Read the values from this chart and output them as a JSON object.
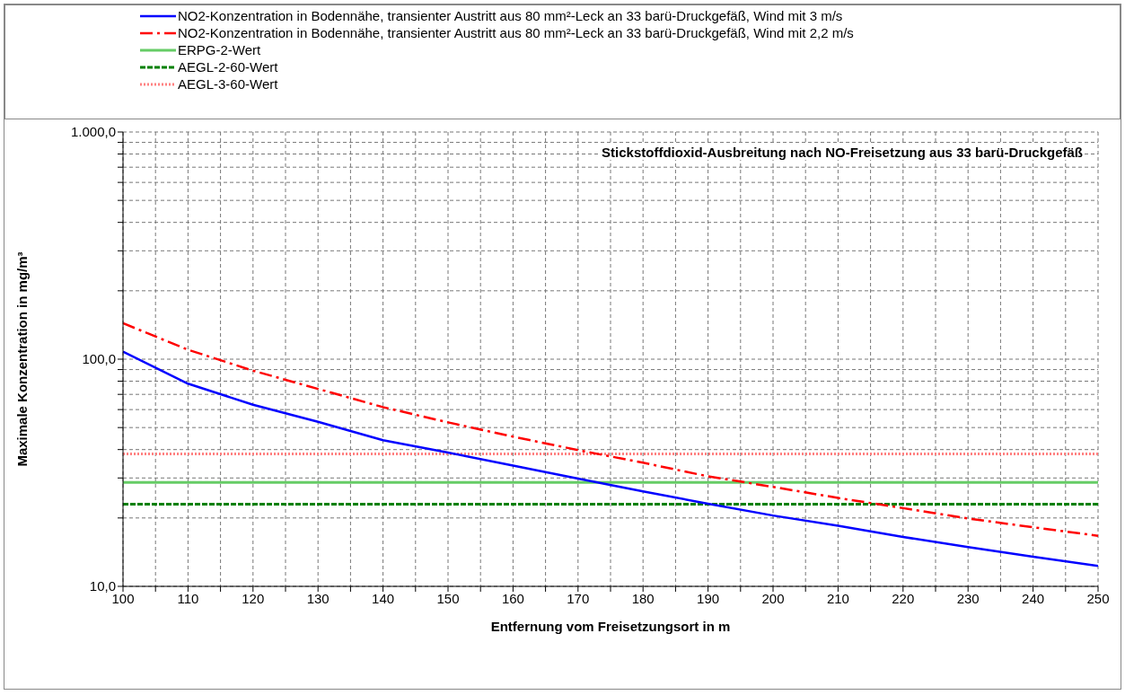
{
  "chart_data": {
    "type": "line",
    "title": "Stickstoffdioxid-Ausbreitung nach NO-Freisetzung aus 33 barü-Druckgefäß",
    "xlabel": "Entfernung vom Freisetzungsort in m",
    "ylabel": "Maximale Konzentration in mg/m³",
    "x": [
      100,
      110,
      120,
      130,
      140,
      150,
      160,
      170,
      180,
      190,
      200,
      210,
      220,
      230,
      240,
      250
    ],
    "series": [
      {
        "name": "NO2-Konzentration in Bodennähe, transienter Austritt aus 80 mm²-Leck an 33 barü-Druckgefäß, Wind mit 3 m/s",
        "color": "#0000ff",
        "line_style": "solid",
        "values": [
          108,
          78,
          63,
          53,
          44,
          38.8,
          34,
          29.8,
          26.2,
          23.1,
          20.5,
          18.5,
          16.5,
          14.9,
          13.5,
          12.3
        ]
      },
      {
        "name": "NO2-Konzentration in Bodennähe, transienter Austritt aus 80 mm²-Leck an 33 barü-Druckgefäß, Wind mit 2,2 m/s",
        "color": "#ff0000",
        "line_style": "dashed",
        "values": [
          144,
          110,
          89,
          74,
          61.5,
          52.7,
          45.6,
          39.8,
          35,
          30.5,
          27.4,
          24.5,
          22.1,
          19.9,
          18.2,
          16.7
        ]
      }
    ],
    "ref_lines": [
      {
        "axis": "y",
        "value": 28.7,
        "label": "ERPG-2-Wert",
        "color": "#66cc66",
        "line_style": "solid"
      },
      {
        "axis": "y",
        "value": 23,
        "label": "AEGL-2-60-Wert",
        "color": "#008000",
        "line_style": "dashed"
      },
      {
        "axis": "y",
        "value": 38.3,
        "label": "AEGL-3-60-Wert",
        "color": "#ff8080",
        "line_style": "dotted"
      }
    ],
    "xlim": [
      100,
      250
    ],
    "xticks": [
      100,
      {
        "value": 105,
        "label": null
      },
      110,
      {
        "value": 115,
        "label": null
      },
      120,
      {
        "value": 125,
        "label": null
      },
      130,
      {
        "value": 135,
        "label": null
      },
      140,
      {
        "value": 145,
        "label": null
      },
      150,
      {
        "value": 155,
        "label": null
      },
      160,
      {
        "value": 165,
        "label": null
      },
      170,
      {
        "value": 175,
        "label": null
      },
      180,
      {
        "value": 185,
        "label": null
      },
      190,
      {
        "value": 195,
        "label": null
      },
      200,
      {
        "value": 205,
        "label": null
      },
      210,
      {
        "value": 215,
        "label": null
      },
      220,
      {
        "value": 225,
        "label": null
      },
      230,
      {
        "value": 235,
        "label": null
      },
      240,
      {
        "value": 245,
        "label": null
      },
      250
    ],
    "ylim": [
      10,
      1000
    ],
    "yticks": [
      {
        "value": 10,
        "label": "10,0"
      },
      {
        "value": 20,
        "label": null
      },
      {
        "value": 30,
        "label": null
      },
      {
        "value": 40,
        "label": null
      },
      {
        "value": 50,
        "label": null
      },
      {
        "value": 60,
        "label": null
      },
      {
        "value": 70,
        "label": null
      },
      {
        "value": 80,
        "label": null
      },
      {
        "value": 90,
        "label": null
      },
      {
        "value": 100,
        "label": "100,0"
      },
      {
        "value": 200,
        "label": null
      },
      {
        "value": 300,
        "label": null
      },
      {
        "value": 400,
        "label": null
      },
      {
        "value": 500,
        "label": null
      },
      {
        "value": 600,
        "label": null
      },
      {
        "value": 700,
        "label": null
      },
      {
        "value": 800,
        "label": null
      },
      {
        "value": 900,
        "label": null
      },
      {
        "value": 1000,
        "label": "1.000,0"
      }
    ],
    "log": true,
    "grid": true,
    "legend": "top",
    "marker": "none"
  }
}
